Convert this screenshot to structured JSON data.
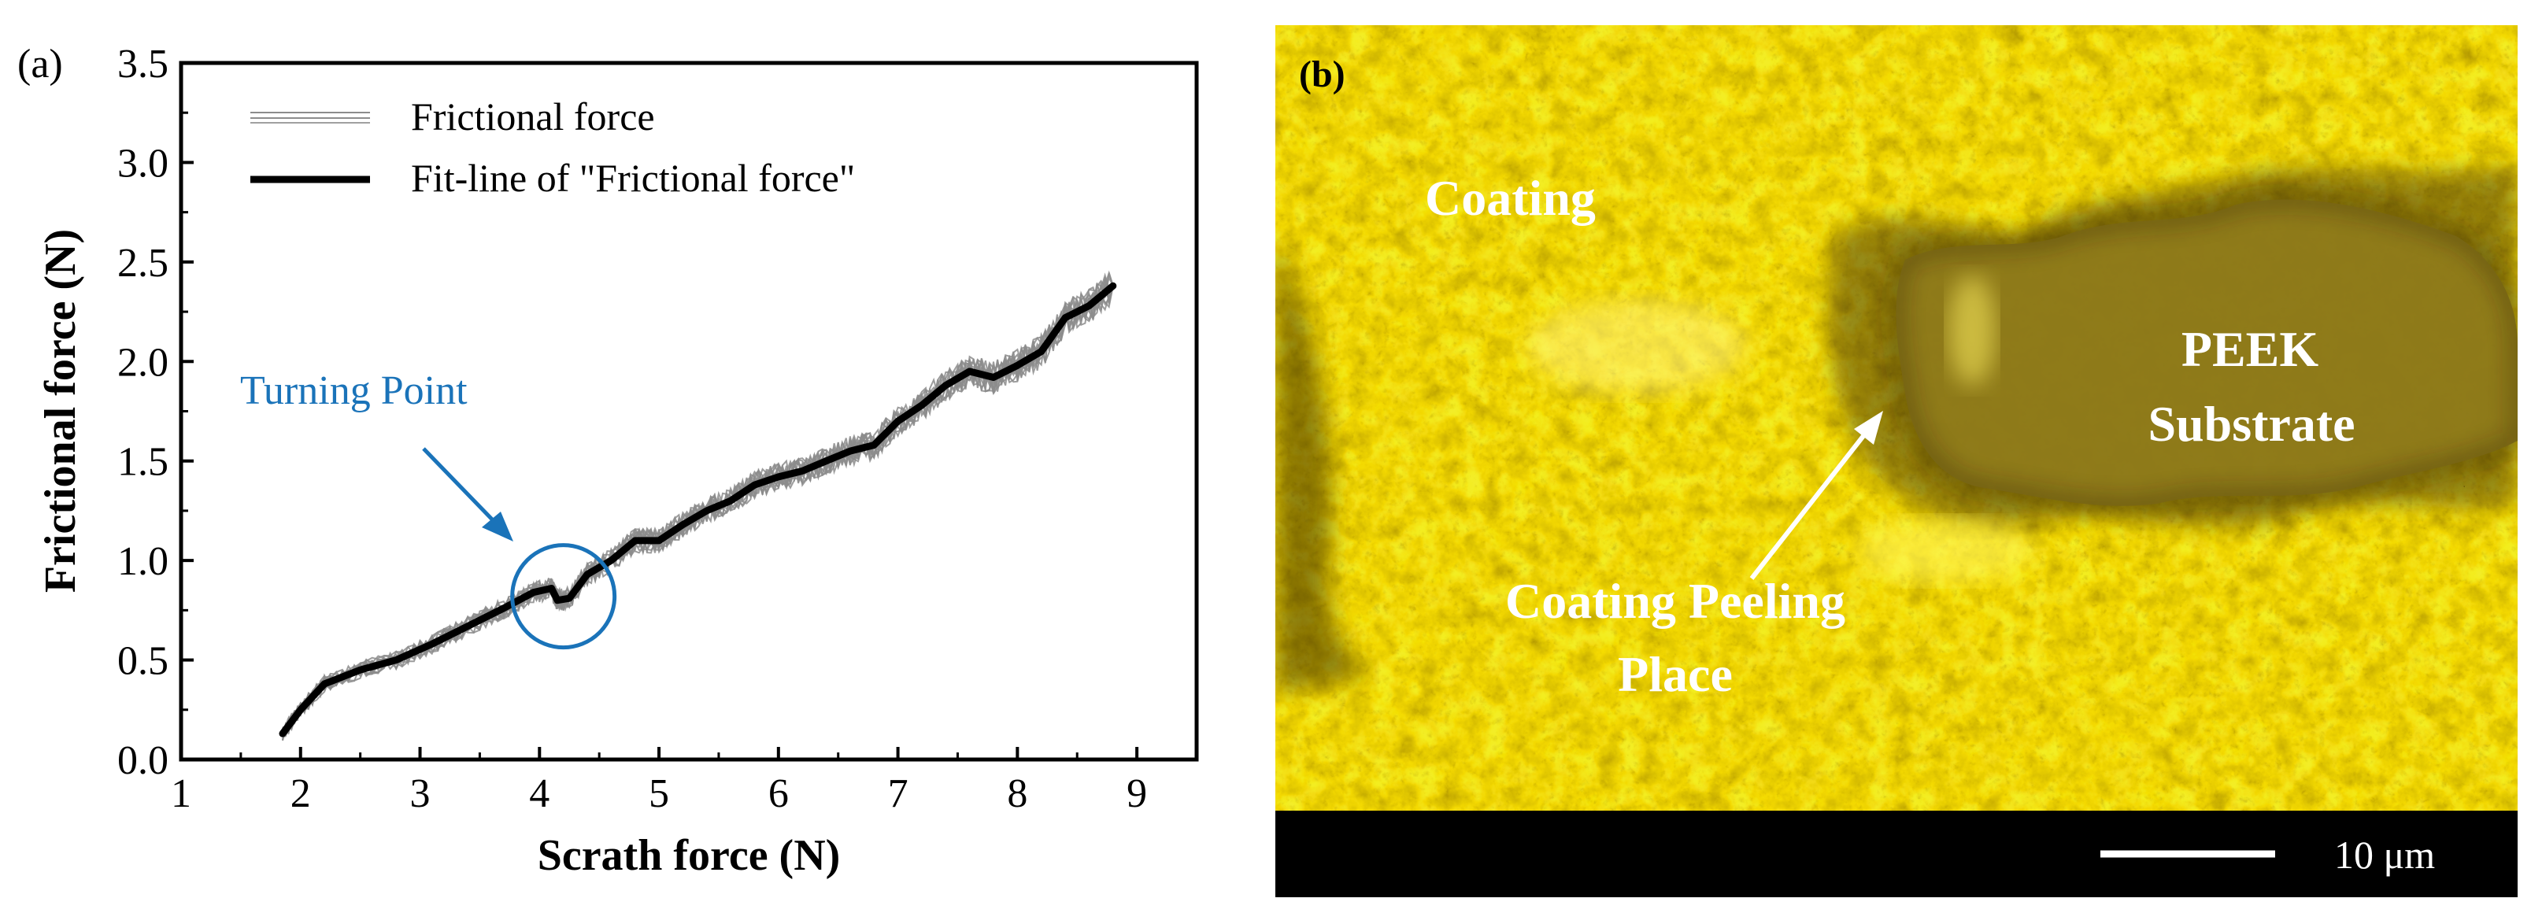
{
  "colors": {
    "fit": "#000000",
    "raw": "#8c8c8c",
    "annotation": "#1a73b9",
    "micrograph_base": "#b79208",
    "peek": "#8e7a1a"
  },
  "panel_a": {
    "label": "(a)",
    "turning_point_label": "Turning Point"
  },
  "panel_b": {
    "label": "(b)",
    "coating": "Coating",
    "peek_line1": "PEEK",
    "peek_line2": "Substrate",
    "peeling_line1": "Coating Peeling",
    "peeling_line2": "Place",
    "scale_bar": "10 μm"
  },
  "chart_data": {
    "type": "line",
    "title": "",
    "xlabel": "Scrath force (N)",
    "ylabel": "Frictional force (N)",
    "xlim": [
      1,
      9.5
    ],
    "ylim": [
      0,
      3.5
    ],
    "xticks": [
      "1",
      "2",
      "3",
      "4",
      "5",
      "6",
      "7",
      "8",
      "9"
    ],
    "yticks": [
      "0.0",
      "0.5",
      "1.0",
      "1.5",
      "2.0",
      "2.5",
      "3.0",
      "3.5"
    ],
    "legend_position": "top-left",
    "series": [
      {
        "name": "Frictional force",
        "style": "thin gray noisy band (repeated measurements)",
        "x": [
          1.85,
          2.0,
          2.2,
          2.5,
          2.8,
          3.1,
          3.4,
          3.7,
          3.95,
          4.1,
          4.15,
          4.25,
          4.4,
          4.6,
          4.8,
          5.0,
          5.2,
          5.4,
          5.6,
          5.8,
          6.0,
          6.2,
          6.4,
          6.6,
          6.8,
          7.0,
          7.2,
          7.4,
          7.6,
          7.8,
          8.0,
          8.2,
          8.4,
          8.6,
          8.8
        ],
        "values": [
          0.13,
          0.25,
          0.38,
          0.45,
          0.5,
          0.58,
          0.67,
          0.76,
          0.84,
          0.86,
          0.8,
          0.81,
          0.93,
          1.0,
          1.1,
          1.1,
          1.18,
          1.25,
          1.3,
          1.38,
          1.42,
          1.45,
          1.5,
          1.55,
          1.58,
          1.7,
          1.78,
          1.88,
          1.95,
          1.92,
          1.98,
          2.05,
          2.22,
          2.28,
          2.38
        ]
      },
      {
        "name": "Fit-line of \"Frictional force\"",
        "style": "thick black line",
        "x": [
          1.85,
          2.0,
          2.2,
          2.5,
          2.8,
          3.1,
          3.4,
          3.7,
          3.95,
          4.1,
          4.15,
          4.25,
          4.4,
          4.6,
          4.8,
          5.0,
          5.2,
          5.4,
          5.6,
          5.8,
          6.0,
          6.2,
          6.4,
          6.6,
          6.8,
          7.0,
          7.2,
          7.4,
          7.6,
          7.8,
          8.0,
          8.2,
          8.4,
          8.6,
          8.8
        ],
        "values": [
          0.13,
          0.25,
          0.38,
          0.45,
          0.5,
          0.58,
          0.67,
          0.76,
          0.84,
          0.86,
          0.8,
          0.81,
          0.93,
          1.0,
          1.1,
          1.1,
          1.18,
          1.25,
          1.3,
          1.38,
          1.42,
          1.45,
          1.5,
          1.55,
          1.58,
          1.7,
          1.78,
          1.88,
          1.95,
          1.92,
          1.98,
          2.05,
          2.22,
          2.28,
          2.38
        ]
      }
    ],
    "annotations": [
      {
        "text": "Turning Point",
        "target_x": 4.2,
        "target_y": 0.82,
        "shape": "circle with arrow"
      }
    ]
  }
}
